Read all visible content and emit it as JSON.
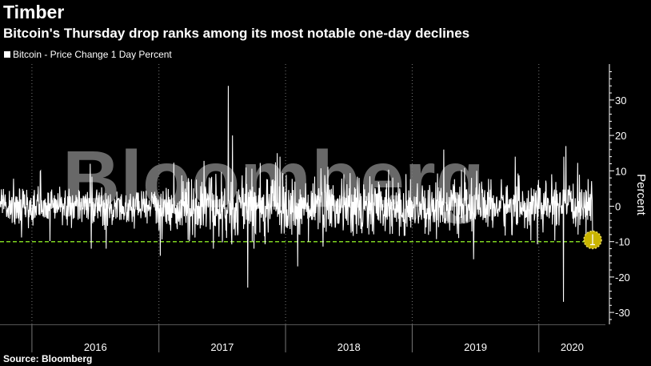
{
  "header": {
    "title": "Timber",
    "subtitle": "Bitcoin's Thursday drop ranks among its most notable one-day declines"
  },
  "legend": {
    "label": "Bitcoin - Price Change 1 Day Percent"
  },
  "watermark": "Bloomberg",
  "footer": {
    "source": "Source: Bloomberg"
  },
  "colors": {
    "background": "#000000",
    "series": "#ffffff",
    "threshold_line": "#7ed321",
    "highlight_marker": "#c9b400"
  },
  "chart_data": {
    "type": "line",
    "series": [
      {
        "name": "Bitcoin - Price Change 1 Day Percent",
        "x_range": [
          "2015-10-01",
          "2020-06-04"
        ],
        "notable_points": [
          {
            "date": "2015-10-01",
            "value": 0
          },
          {
            "date": "2016-06-17",
            "value": 12
          },
          {
            "date": "2016-06-20",
            "value": -12
          },
          {
            "date": "2016-08-02",
            "value": -12
          },
          {
            "date": "2017-01-05",
            "value": -14
          },
          {
            "date": "2017-07-20",
            "value": 34
          },
          {
            "date": "2017-08-01",
            "value": 20
          },
          {
            "date": "2017-09-14",
            "value": -23
          },
          {
            "date": "2017-12-08",
            "value": 15
          },
          {
            "date": "2018-02-05",
            "value": -17
          },
          {
            "date": "2019-04-02",
            "value": 16
          },
          {
            "date": "2019-06-27",
            "value": -15
          },
          {
            "date": "2019-10-25",
            "value": 14
          },
          {
            "date": "2020-03-12",
            "value": -27
          },
          {
            "date": "2020-03-19",
            "value": 17
          },
          {
            "date": "2020-06-04",
            "value": -9.5
          }
        ]
      }
    ],
    "threshold": -10,
    "highlight": {
      "date": "2020-06-04",
      "value": -9.5
    },
    "x_ticks": [
      "2016",
      "2017",
      "2018",
      "2019",
      "2020"
    ],
    "y_ticks": [
      30,
      20,
      10,
      0,
      -10,
      -20,
      -30
    ],
    "ylim": [
      -33,
      40
    ],
    "ylabel": "Percent",
    "grid": "vertical-dotted",
    "legend_position": "top-left"
  }
}
